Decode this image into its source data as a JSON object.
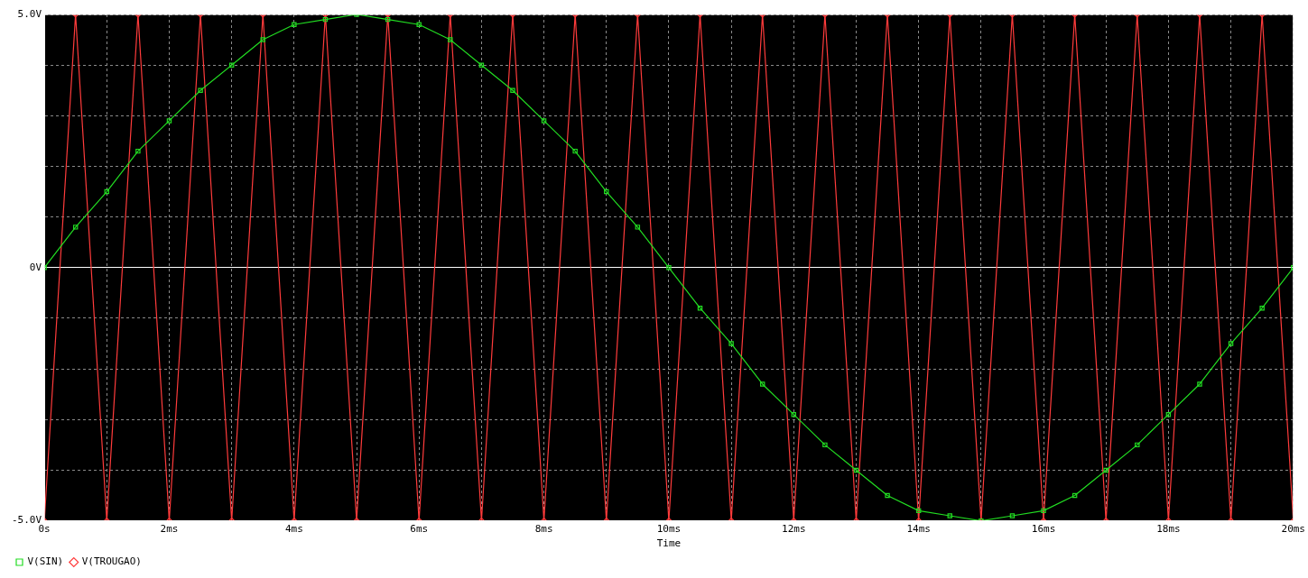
{
  "chart_data": {
    "type": "line",
    "xlabel": "Time",
    "x": [
      0,
      0.5,
      1,
      1.5,
      2,
      2.5,
      3,
      3.5,
      4,
      4.5,
      5,
      5.5,
      6,
      6.5,
      7,
      7.5,
      8,
      8.5,
      9,
      9.5,
      10,
      10.5,
      11,
      11.5,
      12,
      12.5,
      13,
      13.5,
      14,
      14.5,
      15,
      15.5,
      16,
      16.5,
      17,
      17.5,
      18,
      18.5,
      19,
      19.5,
      20
    ],
    "series": [
      {
        "name": "V(SIN)",
        "color": "#22dd22",
        "marker": "square",
        "values": [
          0,
          0.8,
          1.5,
          2.3,
          2.9,
          3.5,
          4.0,
          4.5,
          4.8,
          4.9,
          5.0,
          4.9,
          4.8,
          4.5,
          4.0,
          3.5,
          2.9,
          2.3,
          1.5,
          0.8,
          0,
          -0.8,
          -1.5,
          -2.3,
          -2.9,
          -3.5,
          -4.0,
          -4.5,
          -4.8,
          -4.9,
          -5.0,
          -4.9,
          -4.8,
          -4.5,
          -4.0,
          -3.5,
          -2.9,
          -2.3,
          -1.5,
          -0.8,
          0
        ]
      },
      {
        "name": "V(TROUGAO)",
        "color": "#ff3b3b",
        "marker": "diamond",
        "values": [
          -5,
          5,
          -5,
          5,
          -5,
          5,
          -5,
          5,
          -5,
          5,
          -5,
          5,
          -5,
          5,
          -5,
          5,
          -5,
          5,
          -5,
          5,
          -5,
          5,
          -5,
          5,
          -5,
          5,
          -5,
          5,
          -5,
          5,
          -5,
          5,
          -5,
          5,
          -5,
          5,
          -5,
          5,
          -5,
          5,
          -5
        ]
      }
    ],
    "xlim": [
      0,
      20
    ],
    "xticks": [
      {
        "value": 0,
        "label": "0s"
      },
      {
        "value": 1,
        "label": null
      },
      {
        "value": 2,
        "label": "2ms"
      },
      {
        "value": 3,
        "label": null
      },
      {
        "value": 4,
        "label": "4ms"
      },
      {
        "value": 5,
        "label": null
      },
      {
        "value": 6,
        "label": "6ms"
      },
      {
        "value": 7,
        "label": null
      },
      {
        "value": 8,
        "label": "8ms"
      },
      {
        "value": 9,
        "label": null
      },
      {
        "value": 10,
        "label": "10ms"
      },
      {
        "value": 11,
        "label": null
      },
      {
        "value": 12,
        "label": "12ms"
      },
      {
        "value": 13,
        "label": null
      },
      {
        "value": 14,
        "label": "14ms"
      },
      {
        "value": 15,
        "label": null
      },
      {
        "value": 16,
        "label": "16ms"
      },
      {
        "value": 17,
        "label": null
      },
      {
        "value": 18,
        "label": "18ms"
      },
      {
        "value": 19,
        "label": null
      },
      {
        "value": 20,
        "label": "20ms"
      }
    ],
    "ylim": [
      -5,
      5
    ],
    "yticks": [
      {
        "value": -5,
        "label": "-5.0V"
      },
      {
        "value": -4,
        "label": null
      },
      {
        "value": -3,
        "label": null
      },
      {
        "value": -2,
        "label": null
      },
      {
        "value": -1,
        "label": null
      },
      {
        "value": 0,
        "label": "0V"
      },
      {
        "value": 1,
        "label": null
      },
      {
        "value": 2,
        "label": null
      },
      {
        "value": 3,
        "label": null
      },
      {
        "value": 4,
        "label": null
      },
      {
        "value": 5,
        "label": "5.0V"
      }
    ],
    "grid": true,
    "legend": "bottom left"
  }
}
